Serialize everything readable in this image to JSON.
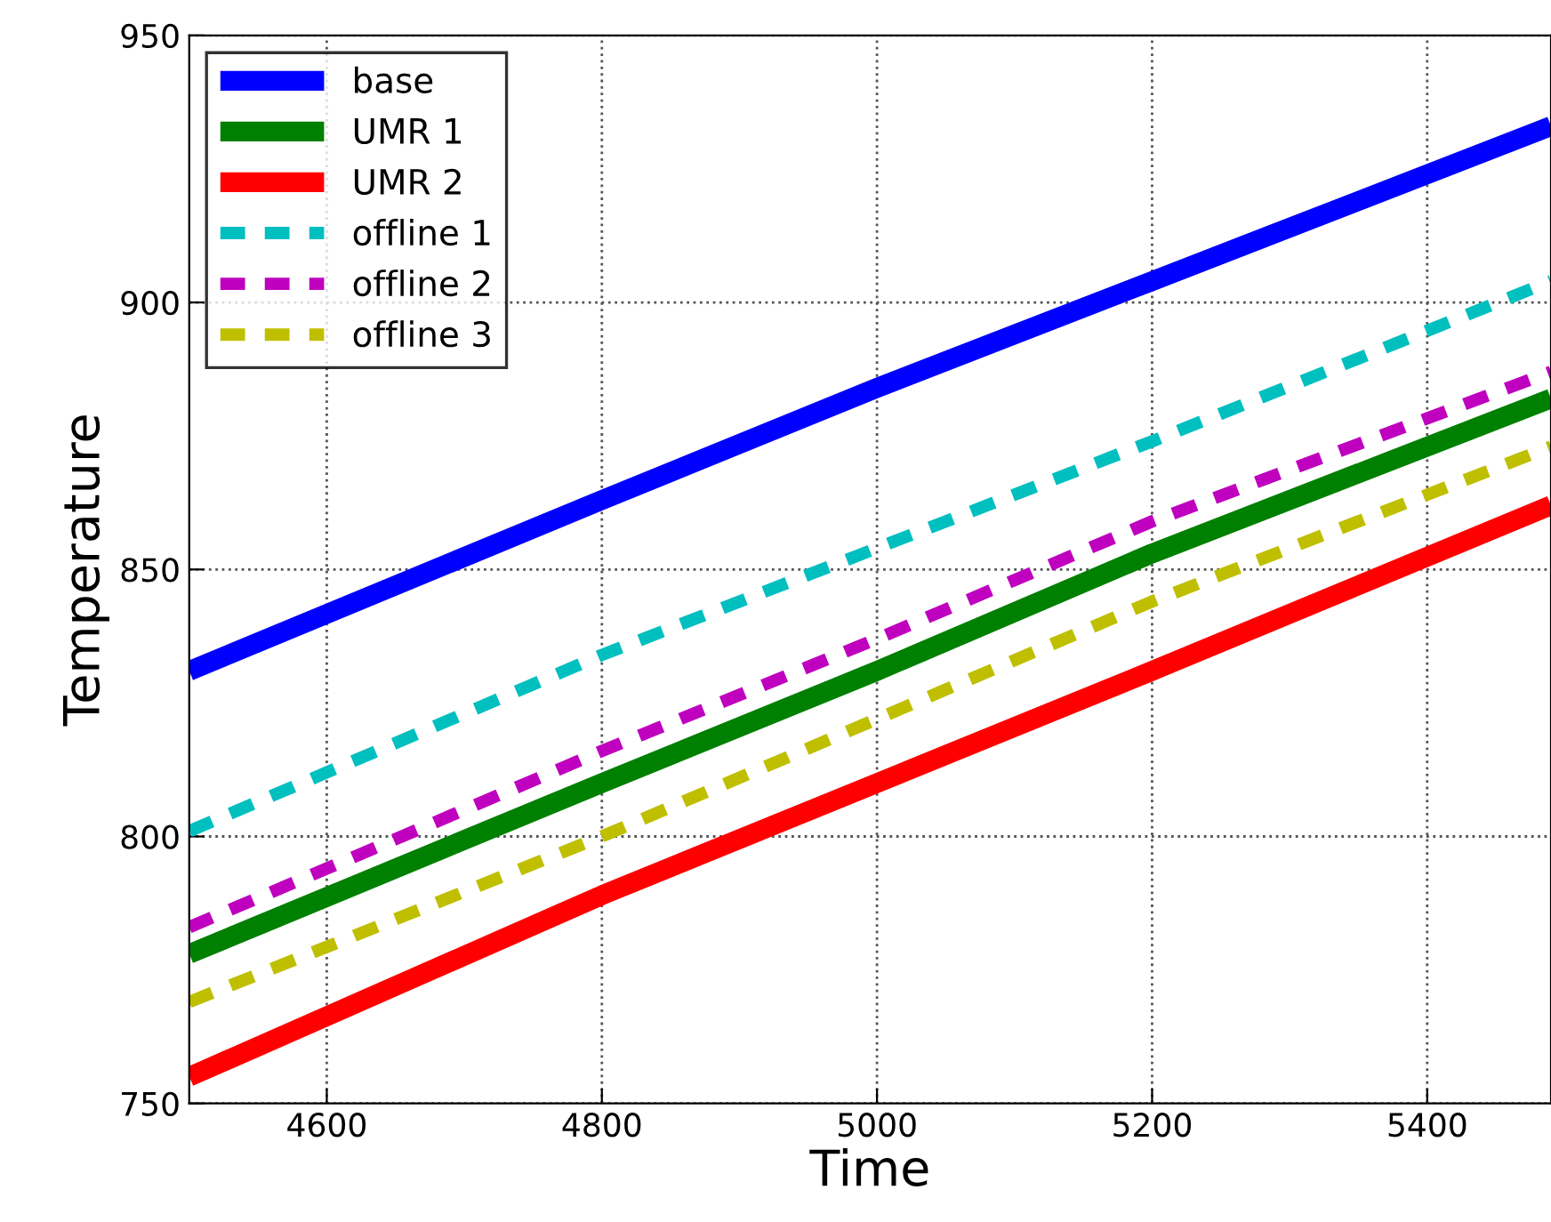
{
  "chart_data": {
    "type": "line",
    "xlabel": "Time",
    "ylabel": "Temperature",
    "xlim": [
      4500,
      5490
    ],
    "xticks": [
      4600,
      4800,
      5000,
      5200,
      5400
    ],
    "ylim": [
      750,
      950
    ],
    "yticks": [
      750,
      800,
      850,
      900,
      950
    ],
    "grid": true,
    "legend": "top left",
    "series": [
      {
        "name": "base",
        "color": "#0000ff",
        "line_style": "solid",
        "x": [
          4500,
          4800,
          5000,
          5200,
          5490
        ],
        "values": [
          831,
          863,
          884,
          904,
          933
        ]
      },
      {
        "name": "UMR 1",
        "color": "#008000",
        "line_style": "solid",
        "x": [
          4500,
          4800,
          5000,
          5200,
          5490
        ],
        "values": [
          778,
          810,
          831,
          853,
          882
        ]
      },
      {
        "name": "UMR 2",
        "color": "#ff0000",
        "line_style": "solid",
        "x": [
          4500,
          4800,
          5000,
          5200,
          5490
        ],
        "values": [
          755,
          789,
          810,
          831,
          862
        ]
      },
      {
        "name": "offline 1",
        "color": "#00bfbf",
        "line_style": "dashed",
        "x": [
          4500,
          4800,
          5000,
          5200,
          5490
        ],
        "values": [
          801,
          834,
          854,
          874,
          904
        ]
      },
      {
        "name": "offline 2",
        "color": "#bf00bf",
        "line_style": "dashed",
        "x": [
          4500,
          4800,
          5000,
          5200,
          5490
        ],
        "values": [
          783,
          816,
          837,
          859,
          887
        ]
      },
      {
        "name": "offline 3",
        "color": "#bfbf00",
        "line_style": "dashed",
        "x": [
          4500,
          4800,
          5000,
          5200,
          5490
        ],
        "values": [
          769,
          800,
          822,
          844,
          873
        ]
      }
    ]
  }
}
